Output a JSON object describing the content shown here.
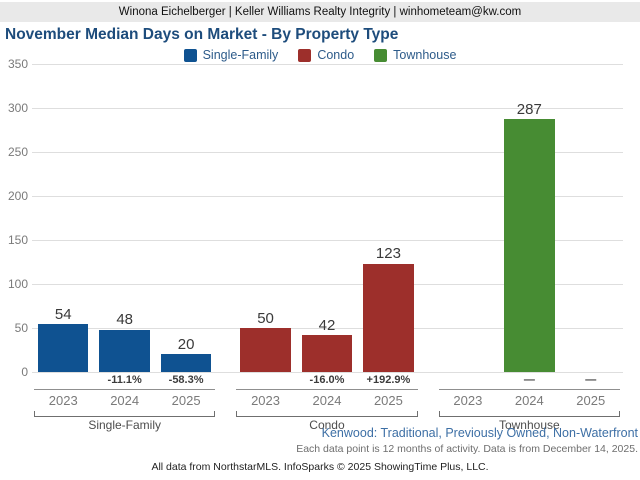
{
  "header": {
    "agent_line": "Winona Eichelberger | Keller Williams Realty Integrity | winhometeam@kw.com"
  },
  "title": "November Median Days on Market - By Property Type",
  "legend": [
    {
      "label": "Single-Family",
      "color": "#0f5291"
    },
    {
      "label": "Condo",
      "color": "#9d2f2b"
    },
    {
      "label": "Townhouse",
      "color": "#478c33"
    }
  ],
  "chart_data": {
    "type": "bar",
    "title": "November Median Days on Market - By Property Type",
    "xlabel": "",
    "ylabel": "",
    "ylim": [
      0,
      350
    ],
    "yticks": [
      0,
      50,
      100,
      150,
      200,
      250,
      300,
      350
    ],
    "grid": true,
    "legend_position": "top",
    "categories": [
      "2023",
      "2024",
      "2025"
    ],
    "series": [
      {
        "name": "Single-Family",
        "color": "#0f5291",
        "values": [
          54,
          48,
          20
        ],
        "value_labels": [
          "54",
          "48",
          "20"
        ],
        "pct_change": [
          "",
          "-11.1%",
          "-58.3%"
        ]
      },
      {
        "name": "Condo",
        "color": "#9d2f2b",
        "values": [
          50,
          42,
          123
        ],
        "value_labels": [
          "50",
          "42",
          "123"
        ],
        "pct_change": [
          "",
          "-16.0%",
          "+192.9%"
        ]
      },
      {
        "name": "Townhouse",
        "color": "#478c33",
        "values": [
          null,
          287,
          null
        ],
        "value_labels": [
          "",
          "287",
          ""
        ],
        "pct_change": [
          "",
          "—",
          "—"
        ]
      }
    ]
  },
  "footer": {
    "filter_line": "Kenwood: Traditional, Previously Owned, Non-Waterfront",
    "data_note": "Each data point is 12 months of activity. Data is from December 14, 2025.",
    "attribution": "All data from NorthstarMLS. InfoSparks © 2025 ShowingTime Plus, LLC."
  }
}
